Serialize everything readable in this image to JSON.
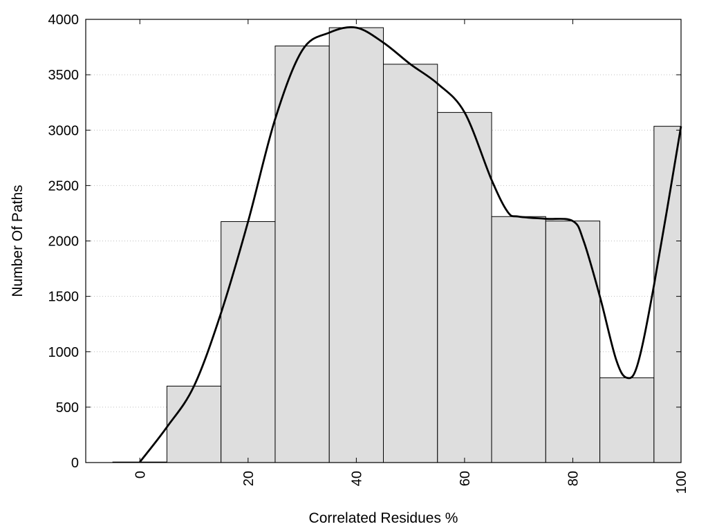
{
  "chart_data": {
    "type": "bar",
    "xlabel": "Correlated Residues %",
    "ylabel": "Number Of Paths",
    "xlim": [
      -10,
      100
    ],
    "ylim": [
      0,
      4000
    ],
    "grid": "horizontal dotted",
    "x_ticks": [
      0,
      20,
      40,
      60,
      80,
      100
    ],
    "y_ticks": [
      0,
      500,
      1000,
      1500,
      2000,
      2500,
      3000,
      3500,
      4000
    ],
    "bin_width": 10,
    "bars": [
      {
        "x": 0,
        "value": 5
      },
      {
        "x": 10,
        "value": 690
      },
      {
        "x": 20,
        "value": 2175
      },
      {
        "x": 30,
        "value": 3760
      },
      {
        "x": 40,
        "value": 3925
      },
      {
        "x": 50,
        "value": 3595
      },
      {
        "x": 60,
        "value": 3160
      },
      {
        "x": 70,
        "value": 2220
      },
      {
        "x": 80,
        "value": 2180
      },
      {
        "x": 90,
        "value": 765
      },
      {
        "x": 100,
        "value": 3035
      }
    ],
    "curve": [
      [
        0,
        5
      ],
      [
        5,
        320
      ],
      [
        10,
        690
      ],
      [
        15,
        1350
      ],
      [
        20,
        2175
      ],
      [
        25,
        3100
      ],
      [
        30,
        3720
      ],
      [
        35,
        3880
      ],
      [
        40,
        3925
      ],
      [
        45,
        3790
      ],
      [
        50,
        3595
      ],
      [
        55,
        3420
      ],
      [
        60,
        3160
      ],
      [
        65,
        2550
      ],
      [
        68,
        2260
      ],
      [
        70,
        2220
      ],
      [
        75,
        2200
      ],
      [
        80,
        2180
      ],
      [
        82,
        2000
      ],
      [
        85,
        1500
      ],
      [
        88,
        930
      ],
      [
        90,
        765
      ],
      [
        92,
        890
      ],
      [
        95,
        1600
      ],
      [
        100,
        3035
      ]
    ],
    "colors": {
      "bar_fill": "#dedede",
      "bar_stroke": "#000000",
      "curve": "#000000",
      "grid": "#bdbdbd"
    }
  }
}
